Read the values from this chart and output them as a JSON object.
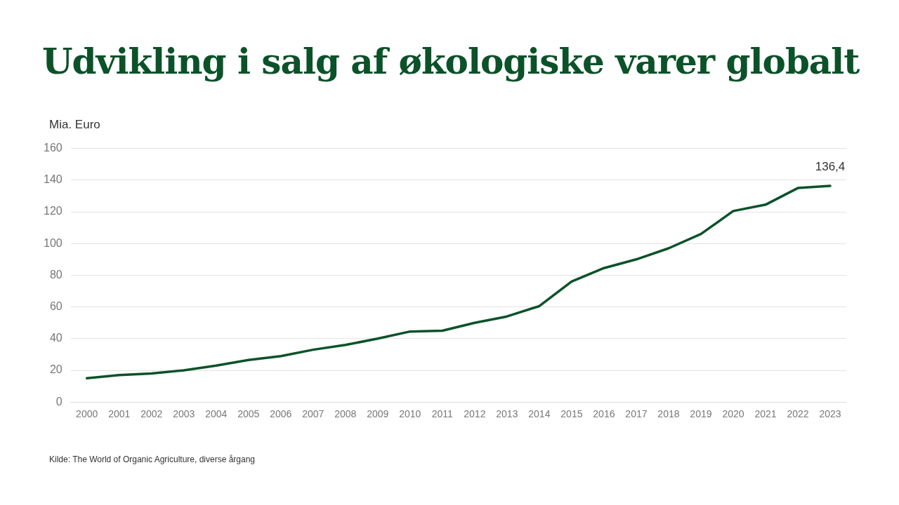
{
  "chart_data": {
    "type": "line",
    "title": "Udvikling i salg af økologiske varer globalt",
    "ylabel": "Mia. Euro",
    "categories": [
      "2000",
      "2001",
      "2002",
      "2003",
      "2004",
      "2005",
      "2006",
      "2007",
      "2008",
      "2009",
      "2010",
      "2011",
      "2012",
      "2013",
      "2014",
      "2015",
      "2016",
      "2017",
      "2018",
      "2019",
      "2020",
      "2021",
      "2022",
      "2023"
    ],
    "series": [
      {
        "color": "#0b5229",
        "values": [
          15,
          17,
          18,
          20,
          23,
          26.5,
          29,
          33,
          36,
          40,
          44.5,
          45,
          50,
          54,
          60.5,
          76,
          84.5,
          90,
          97,
          106,
          120.5,
          124.5,
          135,
          136.4
        ],
        "value_labels": [
          null,
          null,
          null,
          null,
          null,
          null,
          null,
          null,
          null,
          null,
          null,
          null,
          null,
          null,
          null,
          null,
          null,
          null,
          null,
          null,
          null,
          null,
          null,
          "136,4"
        ]
      }
    ],
    "ylim": [
      0,
      160
    ],
    "yticks": [
      0,
      20,
      40,
      60,
      80,
      100,
      120,
      140,
      160
    ],
    "grid": "y",
    "legend": false,
    "marker": "none",
    "line_style": "solid",
    "annotations": [
      "Kilde: The World of Organic Agriculture, diverse årgang"
    ]
  }
}
